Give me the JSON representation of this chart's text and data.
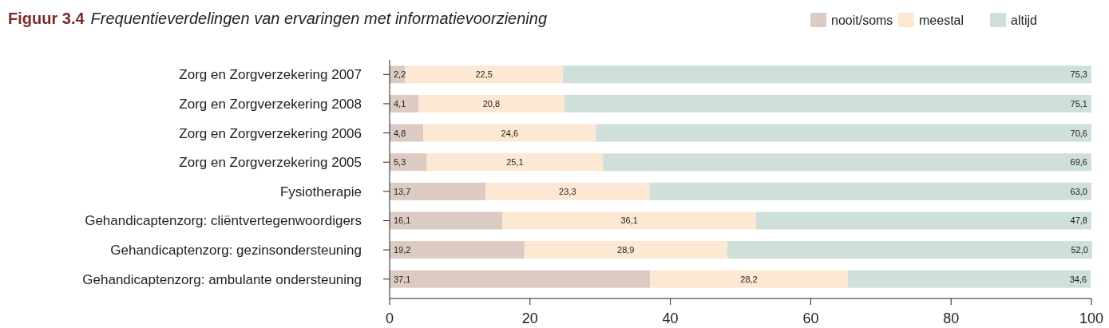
{
  "chart_data": {
    "type": "bar",
    "orientation": "horizontal",
    "stacked": true,
    "title": "Figuur 3.4",
    "subtitle": "Frequentieverdelingen van ervaringen met informatievoorziening",
    "categories": [
      "Zorg en Zorgverzekering 2007",
      "Zorg en Zorgverzekering 2008",
      "Zorg en Zorgverzekering 2006",
      "Zorg en Zorgverzekering 2005",
      "Fysiotherapie",
      "Gehandicaptenzorg: cliëntvertegenwoordigers",
      "Gehandicaptenzorg: gezinsondersteuning",
      "Gehandicaptenzorg: ambulante ondersteuning"
    ],
    "series": [
      {
        "name": "nooit/soms",
        "color": "#dccbc3",
        "values": [
          2.2,
          4.1,
          4.8,
          5.3,
          13.7,
          16.1,
          19.2,
          37.1
        ],
        "value_labels": [
          "2,2",
          "4,1",
          "4,8",
          "5,3",
          "13,7",
          "16,1",
          "19,2",
          "37,1"
        ]
      },
      {
        "name": "meestal",
        "color": "#fde9d3",
        "values": [
          22.5,
          20.8,
          24.6,
          25.1,
          23.3,
          36.1,
          28.9,
          28.2
        ],
        "value_labels": [
          "22,5",
          "20,8",
          "24,6",
          "25,1",
          "23,3",
          "36,1",
          "28,9",
          "28,2"
        ]
      },
      {
        "name": "altijd",
        "color": "#cfe0d8",
        "values": [
          75.3,
          75.1,
          70.6,
          69.6,
          63.0,
          47.8,
          52.0,
          34.6
        ],
        "value_labels": [
          "75,3",
          "75,1",
          "70,6",
          "69,6",
          "63,0",
          "47,8",
          "52,0",
          "34,6"
        ]
      }
    ],
    "xlim": [
      0,
      100
    ],
    "xticks": [
      0,
      20,
      40,
      60,
      80,
      100
    ],
    "legend": "top right",
    "grid": false
  }
}
